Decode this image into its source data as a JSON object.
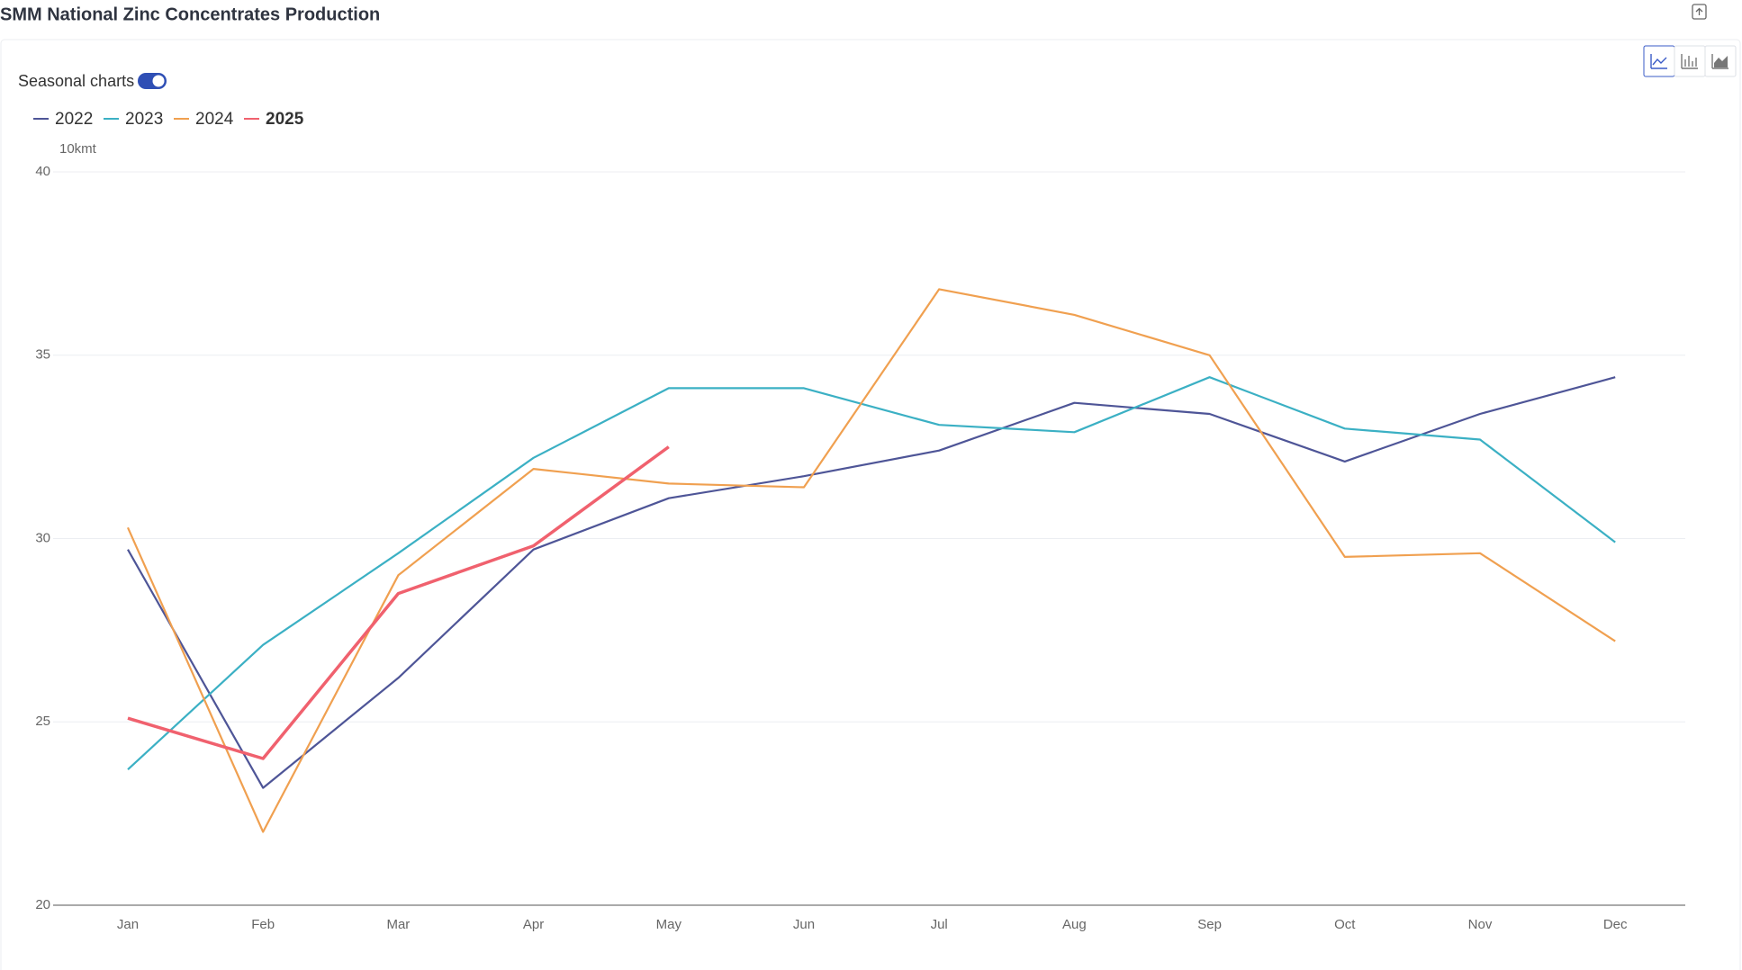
{
  "chart_data": {
    "type": "line",
    "title": "SMM National Zinc Concentrates Production",
    "toggle_label": "Seasonal charts",
    "y_unit": "10kmt",
    "categories": [
      "Jan",
      "Feb",
      "Mar",
      "Apr",
      "May",
      "Jun",
      "Jul",
      "Aug",
      "Sep",
      "Oct",
      "Nov",
      "Dec"
    ],
    "series": [
      {
        "name": "2022",
        "color": "#4e5597",
        "values": [
          29.7,
          23.2,
          26.2,
          29.7,
          31.1,
          31.7,
          32.4,
          33.7,
          33.4,
          32.1,
          33.4,
          34.4
        ]
      },
      {
        "name": "2023",
        "color": "#3bb0c4",
        "values": [
          23.7,
          27.1,
          29.6,
          32.2,
          34.1,
          34.1,
          33.1,
          32.9,
          34.4,
          33.0,
          32.7,
          29.9
        ]
      },
      {
        "name": "2024",
        "color": "#f0a050",
        "values": [
          30.3,
          22.0,
          29.0,
          31.9,
          31.5,
          31.4,
          36.8,
          36.1,
          35.0,
          29.5,
          29.6,
          27.2
        ]
      },
      {
        "name": "2025",
        "color": "#f0616e",
        "values": [
          25.1,
          24.0,
          28.5,
          29.8,
          32.5,
          null,
          null,
          null,
          null,
          null,
          null,
          null
        ]
      }
    ],
    "ylim": [
      20,
      40
    ],
    "yticks": [
      20,
      25,
      30,
      35,
      40
    ],
    "grid": true
  }
}
